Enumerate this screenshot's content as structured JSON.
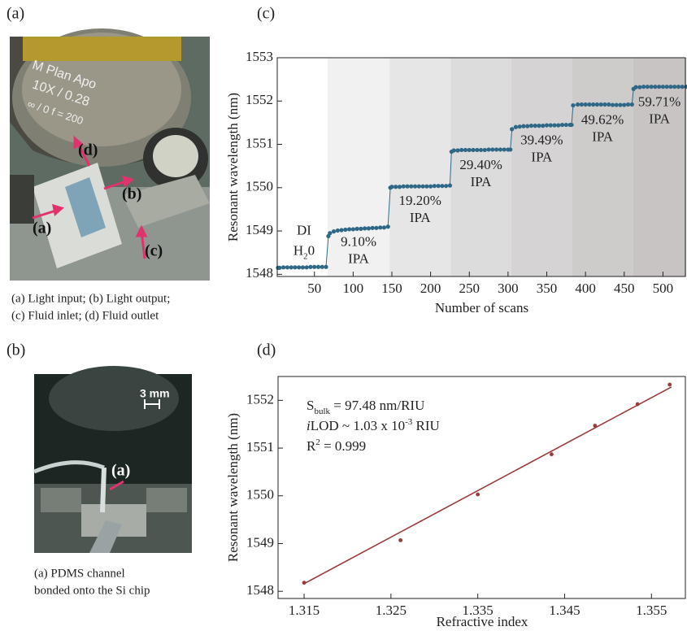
{
  "panels": {
    "a": "(a)",
    "b": "(b)",
    "c": "(c)",
    "d": "(d)"
  },
  "photo_a": {
    "lens": [
      "M Plan Apo",
      "10X / 0.28",
      "∞ / 0   f = 200"
    ],
    "labels": [
      "(a)",
      "(b)",
      "(c)",
      "(d)"
    ]
  },
  "caption_a": [
    "(a) Light input; (b) Light output;",
    "(c) Fluid inlet; (d) Fluid outlet"
  ],
  "photo_b": {
    "scale": "3 mm",
    "label": "(a)"
  },
  "caption_b": [
    "(a) PDMS channel",
    "bonded onto the Si chip"
  ],
  "chart_data": [
    {
      "type": "line",
      "xlabel": "Number of scans",
      "ylabel": "Resonant wavelength (nm)",
      "xlim": [
        2,
        530
      ],
      "ylim": [
        1547.95,
        1553
      ],
      "xticks": [
        50,
        100,
        150,
        200,
        250,
        300,
        350,
        400,
        450,
        500
      ],
      "yticks": [
        1548,
        1549,
        1550,
        1551,
        1552,
        1553
      ],
      "annotation": [
        "DI",
        "H",
        "2",
        "0"
      ],
      "regions": [
        {
          "start": 67,
          "end": 147,
          "color": "#f1f1f1",
          "label": [
            "9.10%",
            "IPA"
          ]
        },
        {
          "start": 147,
          "end": 226,
          "color": "#e6e6e6",
          "label": [
            "19.20%",
            "IPA"
          ]
        },
        {
          "start": 226,
          "end": 304,
          "color": "#dddcdc",
          "label": [
            "29.40%",
            "IPA"
          ]
        },
        {
          "start": 304,
          "end": 383,
          "color": "#d5d3d3",
          "label": [
            "39.49%",
            "IPA"
          ]
        },
        {
          "start": 383,
          "end": 461,
          "color": "#cecbcb",
          "label": [
            "49.62%",
            "IPA"
          ]
        },
        {
          "start": 461,
          "end": 530,
          "color": "#c8c4c4",
          "label": [
            "59.71%",
            "IPA"
          ]
        }
      ],
      "series": [
        {
          "color": "#2f6887",
          "x": [
            3,
            5,
            10,
            15,
            20,
            25,
            30,
            35,
            40,
            45,
            50,
            55,
            60,
            65,
            68,
            70,
            75,
            80,
            85,
            90,
            95,
            100,
            105,
            110,
            115,
            120,
            125,
            130,
            135,
            140,
            145,
            148,
            150,
            155,
            160,
            165,
            170,
            175,
            180,
            185,
            190,
            195,
            200,
            205,
            210,
            215,
            220,
            225,
            227,
            230,
            235,
            240,
            245,
            250,
            255,
            260,
            265,
            270,
            275,
            280,
            285,
            290,
            295,
            300,
            303,
            305,
            310,
            315,
            320,
            325,
            330,
            335,
            340,
            345,
            350,
            355,
            360,
            365,
            370,
            375,
            380,
            382,
            384,
            390,
            395,
            400,
            405,
            410,
            415,
            420,
            425,
            430,
            435,
            440,
            445,
            450,
            455,
            460,
            462,
            465,
            470,
            475,
            480,
            485,
            490,
            495,
            500,
            505,
            510,
            515,
            520,
            525,
            530
          ],
          "values": [
            1548.15,
            1548.15,
            1548.16,
            1548.16,
            1548.16,
            1548.16,
            1548.16,
            1548.16,
            1548.16,
            1548.17,
            1548.17,
            1548.17,
            1548.17,
            1548.17,
            1548.88,
            1548.95,
            1548.99,
            1549.01,
            1549.02,
            1549.03,
            1549.04,
            1549.04,
            1549.05,
            1549.05,
            1549.06,
            1549.06,
            1549.07,
            1549.07,
            1549.08,
            1549.08,
            1549.1,
            1550.0,
            1550.02,
            1550.02,
            1550.02,
            1550.03,
            1550.03,
            1550.03,
            1550.03,
            1550.03,
            1550.03,
            1550.03,
            1550.03,
            1550.04,
            1550.04,
            1550.04,
            1550.04,
            1550.05,
            1550.83,
            1550.86,
            1550.86,
            1550.87,
            1550.87,
            1550.87,
            1550.87,
            1550.87,
            1550.87,
            1550.87,
            1550.88,
            1550.88,
            1550.88,
            1550.88,
            1550.88,
            1550.88,
            1550.88,
            1551.35,
            1551.4,
            1551.41,
            1551.42,
            1551.42,
            1551.43,
            1551.43,
            1551.43,
            1551.43,
            1551.44,
            1551.44,
            1551.44,
            1551.44,
            1551.45,
            1551.45,
            1551.45,
            1551.45,
            1551.9,
            1551.92,
            1551.92,
            1551.92,
            1551.92,
            1551.92,
            1551.92,
            1551.92,
            1551.92,
            1551.92,
            1551.91,
            1551.91,
            1551.91,
            1551.91,
            1551.92,
            1551.92,
            1552.28,
            1552.32,
            1552.32,
            1552.33,
            1552.33,
            1552.33,
            1552.33,
            1552.33,
            1552.33,
            1552.33,
            1552.33,
            1552.33,
            1552.33,
            1552.33,
            1552.33
          ]
        }
      ]
    },
    {
      "type": "scatter",
      "xlabel": "Refractive index",
      "ylabel": "Resonant wavelength (nm)",
      "xlim": [
        1.312,
        1.359
      ],
      "ylim": [
        1547.85,
        1552.5
      ],
      "xticks": [
        1.315,
        1.325,
        1.335,
        1.345,
        1.355
      ],
      "yticks": [
        1548,
        1549,
        1550,
        1551,
        1552
      ],
      "annotations": [
        [
          "S",
          "bulk",
          " = 97.48 nm/RIU"
        ],
        [
          "i",
          "LOD ~ 1.03 x 10",
          "-3",
          " RIU"
        ],
        [
          "R",
          "2",
          " = 0.999"
        ]
      ],
      "series": [
        {
          "color": "#9b3b3b",
          "x": [
            1.315,
            1.3261,
            1.335,
            1.3435,
            1.3485,
            1.3534,
            1.3571
          ],
          "values": [
            1548.18,
            1549.07,
            1550.03,
            1550.87,
            1551.47,
            1551.92,
            1552.33
          ]
        }
      ],
      "fit": {
        "color": "#9b3b3b",
        "x": [
          1.315,
          1.3573
        ],
        "values": [
          1548.16,
          1552.28
        ]
      }
    }
  ]
}
